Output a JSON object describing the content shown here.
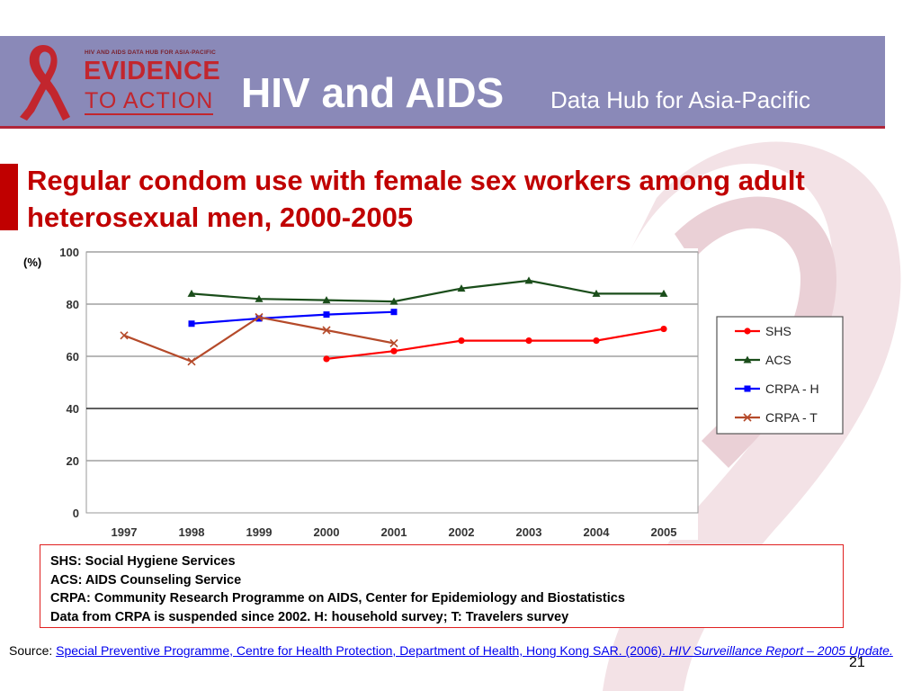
{
  "header": {
    "logo": {
      "tagline": "HIV AND AIDS DATA HUB FOR ASIA-PACIFIC",
      "line1": "EVIDENCE",
      "line2": "TO ACTION"
    },
    "title": "HIV and AIDS",
    "subtitle": "Data Hub for Asia-Pacific"
  },
  "slide": {
    "title": "Regular condom use with female sex workers among adult heterosexual men, 2000-2005"
  },
  "chart_data": {
    "type": "line",
    "title": "",
    "ylabel": "(%)",
    "xlabel": "",
    "ylim": [
      0,
      100
    ],
    "yticks": [
      "0",
      "20",
      "40",
      "60",
      "80",
      "100"
    ],
    "categories": [
      "1997",
      "1998",
      "1999",
      "2000",
      "2001",
      "2002",
      "2003",
      "2004",
      "2005"
    ],
    "grid": true,
    "legend": "right",
    "series": [
      {
        "name": "SHS",
        "color": "#ff0000",
        "marker": "circle",
        "values": [
          null,
          null,
          null,
          59,
          62,
          66,
          66,
          66,
          70.5
        ]
      },
      {
        "name": "ACS",
        "color": "#1a4d1a",
        "marker": "triangle",
        "values": [
          null,
          84,
          82,
          81.5,
          81,
          86,
          89,
          84,
          84
        ]
      },
      {
        "name": "CRPA - H",
        "color": "#0000ff",
        "marker": "square",
        "values": [
          null,
          72.5,
          74.5,
          76,
          77,
          null,
          null,
          null,
          null
        ]
      },
      {
        "name": "CRPA - T",
        "color": "#b54a2a",
        "marker": "x",
        "values": [
          68,
          58,
          75,
          70,
          65,
          null,
          null,
          null,
          null
        ]
      }
    ]
  },
  "notes": [
    "SHS: Social Hygiene Services",
    "ACS: AIDS Counseling Service",
    "CRPA: Community Research Programme on AIDS, Center for Epidemiology and Biostatistics",
    "Data from CRPA is suspended since 2002. H: household survey; T: Travelers survey"
  ],
  "source": {
    "label": "Source: ",
    "link_text": "Special Preventive Programme, Centre for Health Protection, Department of Health, Hong Kong SAR. (2006). ",
    "report_title": "HIV Surveillance Report – 2005 Update."
  },
  "page_number": "21"
}
